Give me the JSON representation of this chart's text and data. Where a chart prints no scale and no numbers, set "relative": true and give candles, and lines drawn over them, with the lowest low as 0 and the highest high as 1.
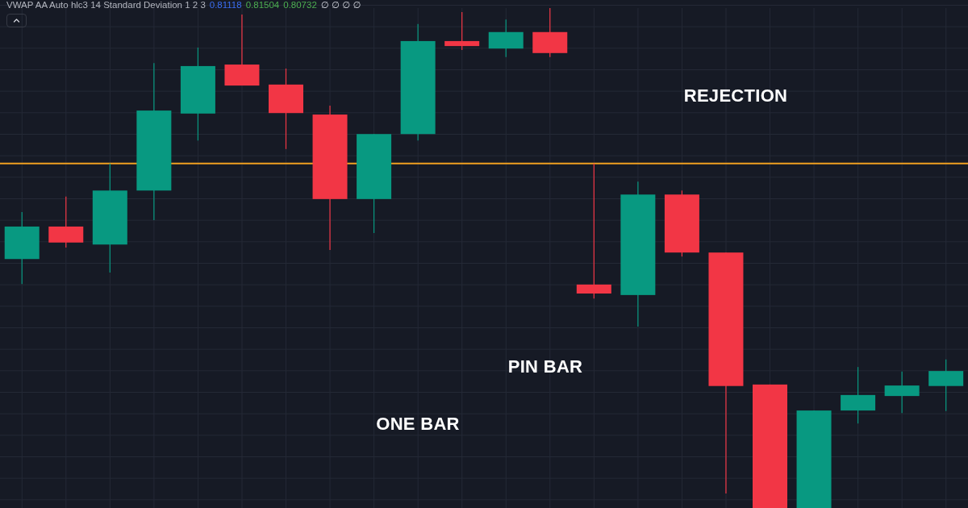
{
  "chart_data": {
    "type": "candlestick",
    "relative": true,
    "grid": true,
    "categories": [
      null,
      null,
      null,
      null,
      null,
      null,
      null,
      null,
      null,
      null,
      null,
      null,
      null,
      null,
      null,
      null,
      null,
      null,
      null,
      null,
      null,
      null
    ],
    "ohlc": [
      [
        0.498,
        0.592,
        0.448,
        0.563
      ],
      [
        0.563,
        0.623,
        0.521,
        0.531
      ],
      [
        0.527,
        0.689,
        0.471,
        0.635
      ],
      [
        0.635,
        0.89,
        0.576,
        0.795
      ],
      [
        0.789,
        0.921,
        0.735,
        0.884
      ],
      [
        0.887,
        0.987,
        0.845,
        0.845
      ],
      [
        0.847,
        0.879,
        0.718,
        0.79
      ],
      [
        0.787,
        0.805,
        0.516,
        0.618
      ],
      [
        0.618,
        0.748,
        0.55,
        0.748
      ],
      [
        0.748,
        0.968,
        0.735,
        0.934
      ],
      [
        0.934,
        0.992,
        0.916,
        0.924
      ],
      [
        0.919,
        0.977,
        0.902,
        0.952
      ],
      [
        0.952,
        1,
        0.902,
        0.91
      ],
      [
        0.447,
        0.689,
        0.419,
        0.429
      ],
      [
        0.426,
        0.653,
        0.363,
        0.627
      ],
      [
        0.627,
        0.635,
        0.503,
        0.511
      ],
      [
        0.511,
        0.511,
        0.029,
        0.244
      ],
      [
        0.247,
        0.247,
        0,
        0
      ],
      [
        0,
        0.195,
        0,
        0.195
      ],
      [
        0.195,
        0.282,
        0.169,
        0.226
      ],
      [
        0.224,
        0.273,
        0.19,
        0.245
      ],
      [
        0.244,
        0.297,
        0.194,
        0.274
      ]
    ],
    "colors": [
      "#089981",
      "#f23645",
      "#089981",
      "#089981",
      "#089981",
      "#f23645",
      "#f23645",
      "#f23645",
      "#089981",
      "#089981",
      "#f23645",
      "#089981",
      "#f23645",
      "#f23645",
      "#089981",
      "#f23645",
      "#f23645",
      "#f23645",
      "#089981",
      "#089981",
      "#089981",
      "#089981"
    ],
    "ref_lines": [
      {
        "axis": "y",
        "value": 0.689,
        "color": "#f0a020"
      }
    ],
    "annotations": [
      "VWAP AA Auto hlc3 14 Standard Deviation 1 2 3",
      "0.81118",
      "0.81504",
      "0.80732",
      "∅ ∅ ∅ ∅",
      "REJECTION",
      "PIN BAR",
      "ONE BAR"
    ]
  }
}
